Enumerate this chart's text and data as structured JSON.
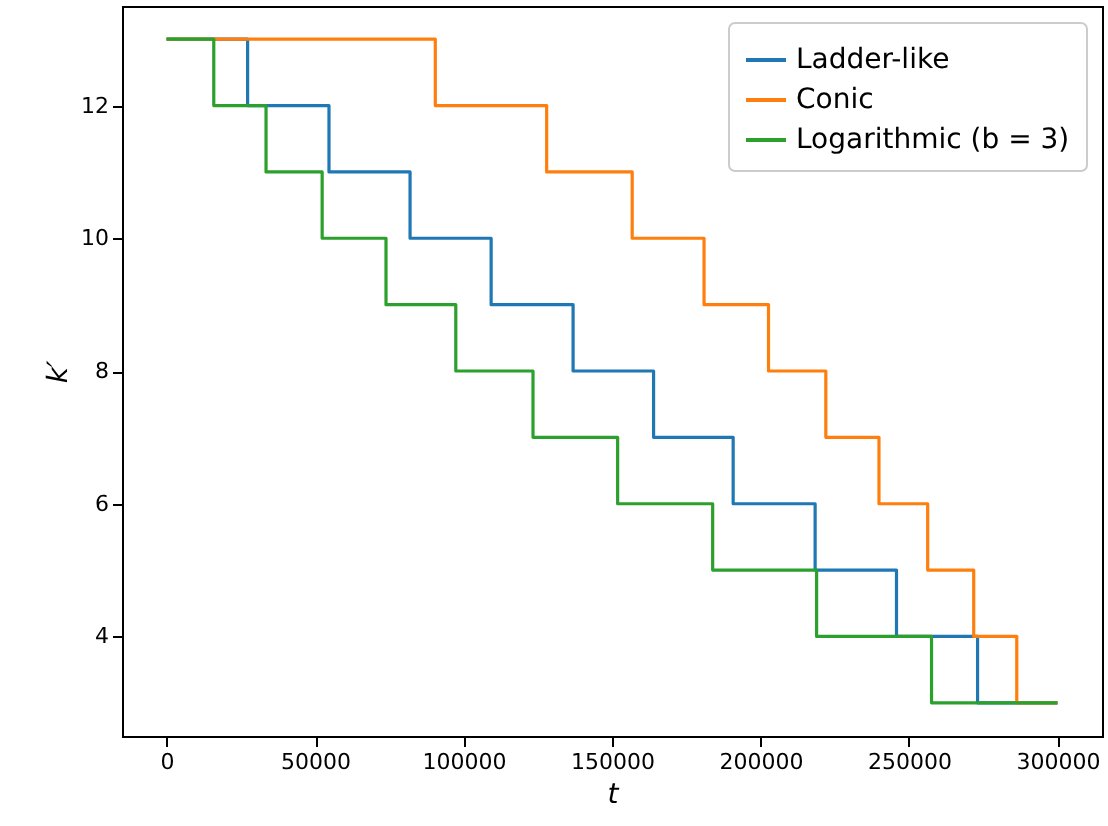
{
  "chart_data": {
    "type": "step",
    "xlabel": "t",
    "ylabel": "k′",
    "xlim": [
      -15000,
      315000
    ],
    "ylim": [
      2.5,
      13.5
    ],
    "xticks": [
      0,
      50000,
      100000,
      150000,
      200000,
      250000,
      300000
    ],
    "yticks": [
      4,
      6,
      8,
      10,
      12
    ],
    "grid": false,
    "legend": "top right",
    "line_style": "solid",
    "series": [
      {
        "name": "Ladder-like",
        "color": "#1f77b4",
        "x": [
          0,
          27300,
          54700,
          82000,
          109300,
          136900,
          164000,
          190800,
          218400,
          245800,
          273100,
          300000
        ],
        "values": [
          13,
          12,
          11,
          10,
          9,
          8,
          7,
          6,
          5,
          4,
          3,
          3
        ]
      },
      {
        "name": "Conic",
        "color": "#ff7f0e",
        "x": [
          0,
          90500,
          128000,
          156800,
          181000,
          202700,
          222000,
          239900,
          256300,
          271800,
          286300,
          300000
        ],
        "values": [
          13,
          12,
          11,
          10,
          9,
          8,
          7,
          6,
          5,
          4,
          3,
          3
        ]
      },
      {
        "name": "Logarithmic (b = 3)",
        "color": "#2ca02c",
        "x": [
          0,
          15900,
          33500,
          52400,
          73900,
          97400,
          123400,
          151900,
          183900,
          218900,
          257600,
          300000
        ],
        "values": [
          13,
          12,
          11,
          10,
          9,
          8,
          7,
          6,
          5,
          4,
          3,
          3
        ]
      }
    ]
  }
}
